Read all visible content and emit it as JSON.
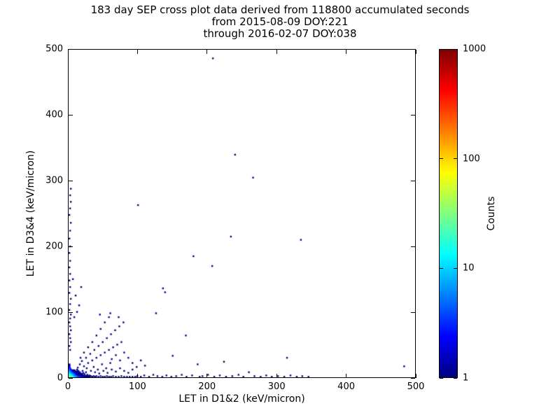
{
  "figure": {
    "title_lines": [
      "183 day SEP cross plot data derived from 118800 accumulated seconds",
      "from 2015-08-09 DOY:221",
      "through 2016-02-07 DOY:038"
    ],
    "background": "#ffffff",
    "text_color": "#000000"
  },
  "chart_data": {
    "type": "scatter",
    "title": "183 day SEP cross plot data derived from 118800 accumulated seconds from 2015-08-09 DOY:221 through 2016-02-07 DOY:038",
    "xlabel": "LET in D1&2 (keV/micron)",
    "ylabel": "LET in D3&4 (keV/micron)",
    "xlim": [
      0,
      500
    ],
    "ylim": [
      0,
      500
    ],
    "x_ticks": [
      0,
      100,
      200,
      300,
      400,
      500
    ],
    "y_ticks": [
      0,
      100,
      200,
      300,
      400,
      500
    ],
    "grid": false,
    "legend": "none",
    "colorbar": {
      "label": "Counts",
      "scale": "log",
      "min": 1,
      "max": 1000,
      "tick_values": [
        1000,
        100,
        10,
        1
      ],
      "tick_labels": [
        "1000",
        "100",
        "10",
        "1"
      ],
      "colormap": "jet",
      "gradient_stops": [
        {
          "pos": 0.0,
          "color": "#7f0000"
        },
        {
          "pos": 0.125,
          "color": "#ff0000"
        },
        {
          "pos": 0.375,
          "color": "#ffff00"
        },
        {
          "pos": 0.625,
          "color": "#00ffff"
        },
        {
          "pos": 0.875,
          "color": "#0000ff"
        },
        {
          "pos": 1.0,
          "color": "#00007f"
        }
      ]
    },
    "points_format": [
      "let_d12",
      "let_d34",
      "count"
    ],
    "points": [
      [
        1,
        1,
        30
      ],
      [
        2,
        1,
        26
      ],
      [
        1,
        2,
        24
      ],
      [
        2,
        2,
        22
      ],
      [
        3,
        1,
        20
      ],
      [
        1,
        3,
        19
      ],
      [
        3,
        2,
        17
      ],
      [
        2,
        3,
        16
      ],
      [
        3,
        3,
        14
      ],
      [
        4,
        1,
        17
      ],
      [
        1,
        4,
        15
      ],
      [
        4,
        2,
        13
      ],
      [
        2,
        4,
        12
      ],
      [
        4,
        3,
        11
      ],
      [
        3,
        4,
        10
      ],
      [
        4,
        4,
        9
      ],
      [
        5,
        1,
        14
      ],
      [
        1,
        5,
        12
      ],
      [
        5,
        2,
        11
      ],
      [
        2,
        5,
        10
      ],
      [
        5,
        3,
        9
      ],
      [
        3,
        5,
        8
      ],
      [
        5,
        4,
        7
      ],
      [
        4,
        5,
        7
      ],
      [
        5,
        5,
        6
      ],
      [
        6,
        1,
        12
      ],
      [
        1,
        6,
        10
      ],
      [
        6,
        2,
        9
      ],
      [
        2,
        6,
        8
      ],
      [
        6,
        3,
        7
      ],
      [
        3,
        6,
        7
      ],
      [
        6,
        4,
        6
      ],
      [
        4,
        6,
        5
      ],
      [
        6,
        5,
        5
      ],
      [
        5,
        6,
        4
      ],
      [
        6,
        6,
        4
      ],
      [
        7,
        1,
        10
      ],
      [
        1,
        7,
        8
      ],
      [
        7,
        2,
        7
      ],
      [
        2,
        7,
        7
      ],
      [
        7,
        3,
        6
      ],
      [
        3,
        7,
        5
      ],
      [
        7,
        4,
        5
      ],
      [
        4,
        7,
        4
      ],
      [
        7,
        5,
        4
      ],
      [
        5,
        7,
        3
      ],
      [
        7,
        6,
        3
      ],
      [
        6,
        7,
        3
      ],
      [
        7,
        7,
        2
      ],
      [
        8,
        1,
        8
      ],
      [
        1,
        8,
        7
      ],
      [
        8,
        2,
        6
      ],
      [
        2,
        8,
        5
      ],
      [
        8,
        3,
        5
      ],
      [
        3,
        8,
        4
      ],
      [
        8,
        4,
        4
      ],
      [
        4,
        8,
        3
      ],
      [
        8,
        5,
        3
      ],
      [
        5,
        8,
        3
      ],
      [
        8,
        6,
        2
      ],
      [
        6,
        8,
        2
      ],
      [
        8,
        8,
        2
      ],
      [
        9,
        1,
        7
      ],
      [
        1,
        9,
        6
      ],
      [
        9,
        2,
        5
      ],
      [
        2,
        9,
        4
      ],
      [
        9,
        3,
        4
      ],
      [
        3,
        9,
        3
      ],
      [
        9,
        4,
        3
      ],
      [
        4,
        9,
        3
      ],
      [
        9,
        5,
        2
      ],
      [
        5,
        9,
        2
      ],
      [
        9,
        7,
        2
      ],
      [
        7,
        9,
        1
      ],
      [
        10,
        1,
        6
      ],
      [
        1,
        10,
        5
      ],
      [
        10,
        2,
        4
      ],
      [
        2,
        10,
        4
      ],
      [
        10,
        3,
        3
      ],
      [
        3,
        10,
        3
      ],
      [
        10,
        4,
        2
      ],
      [
        4,
        10,
        2
      ],
      [
        10,
        5,
        2
      ],
      [
        5,
        10,
        1
      ],
      [
        10,
        7,
        1
      ],
      [
        7,
        10,
        1
      ],
      [
        9,
        9,
        1
      ],
      [
        10,
        9,
        1
      ],
      [
        9,
        10,
        1
      ],
      [
        11,
        1,
        5
      ],
      [
        1,
        11,
        4
      ],
      [
        11,
        2,
        4
      ],
      [
        2,
        11,
        3
      ],
      [
        11,
        3,
        2
      ],
      [
        3,
        11,
        2
      ],
      [
        11,
        4,
        2
      ],
      [
        4,
        11,
        1
      ],
      [
        11,
        6,
        1
      ],
      [
        6,
        11,
        1
      ],
      [
        12,
        1,
        4
      ],
      [
        1,
        12,
        4
      ],
      [
        12,
        2,
        3
      ],
      [
        2,
        12,
        2
      ],
      [
        12,
        3,
        2
      ],
      [
        3,
        12,
        2
      ],
      [
        12,
        5,
        1
      ],
      [
        13,
        1,
        4
      ],
      [
        1,
        13,
        3
      ],
      [
        13,
        2,
        2
      ],
      [
        2,
        13,
        2
      ],
      [
        13,
        3,
        1
      ],
      [
        13,
        6,
        1
      ],
      [
        14,
        1,
        3
      ],
      [
        1,
        14,
        3
      ],
      [
        14,
        2,
        2
      ],
      [
        2,
        14,
        1
      ],
      [
        14,
        4,
        1
      ],
      [
        15,
        1,
        3
      ],
      [
        1,
        15,
        2
      ],
      [
        15,
        2,
        2
      ],
      [
        15,
        3,
        1
      ],
      [
        16,
        1,
        3
      ],
      [
        1,
        16,
        2
      ],
      [
        16,
        2,
        1
      ],
      [
        16,
        5,
        1
      ],
      [
        17,
        1,
        2
      ],
      [
        1,
        17,
        2
      ],
      [
        17,
        2,
        1
      ],
      [
        18,
        1,
        2
      ],
      [
        1,
        18,
        1
      ],
      [
        18,
        3,
        1
      ],
      [
        19,
        1,
        2
      ],
      [
        1,
        19,
        1
      ],
      [
        20,
        1,
        2
      ],
      [
        1,
        20,
        1
      ],
      [
        20,
        2,
        1
      ],
      [
        21,
        1,
        1
      ],
      [
        22,
        1,
        1
      ],
      [
        23,
        1,
        1
      ],
      [
        24,
        1,
        1
      ],
      [
        25,
        1,
        1
      ],
      [
        26,
        1,
        1
      ],
      [
        27,
        1,
        1
      ],
      [
        28,
        1,
        1
      ],
      [
        29,
        1,
        1
      ],
      [
        30,
        1,
        1
      ],
      [
        11,
        8,
        1
      ],
      [
        8,
        11,
        1
      ],
      [
        12,
        9,
        1
      ],
      [
        14,
        7,
        1
      ],
      [
        13,
        9,
        1
      ],
      [
        15,
        6,
        1
      ],
      [
        16,
        8,
        1
      ],
      [
        12,
        12,
        1
      ],
      [
        14,
        10,
        1
      ],
      [
        17,
        5,
        1
      ],
      [
        19,
        4,
        1
      ],
      [
        18,
        6,
        1
      ],
      [
        20,
        5,
        1
      ],
      [
        22,
        3,
        1
      ],
      [
        24,
        2,
        1
      ],
      [
        26,
        3,
        1
      ],
      [
        28,
        2,
        1
      ],
      [
        21,
        7,
        1
      ],
      [
        23,
        5,
        1
      ],
      [
        25,
        8,
        1
      ],
      [
        27,
        4,
        1
      ],
      [
        30,
        3,
        1
      ],
      [
        32,
        2,
        1
      ],
      [
        34,
        1,
        1
      ],
      [
        36,
        2,
        1
      ],
      [
        38,
        1,
        1
      ],
      [
        40,
        2,
        1
      ],
      [
        43,
        1,
        1
      ],
      [
        46,
        2,
        1
      ],
      [
        49,
        1,
        1
      ],
      [
        52,
        1,
        1
      ],
      [
        55,
        2,
        1
      ],
      [
        58,
        1,
        1
      ],
      [
        61,
        1,
        1
      ],
      [
        64,
        2,
        1
      ],
      [
        68,
        1,
        1
      ],
      [
        72,
        1,
        1
      ],
      [
        76,
        2,
        1
      ],
      [
        80,
        1,
        1
      ],
      [
        84,
        1,
        1
      ],
      [
        88,
        1,
        1
      ],
      [
        92,
        1,
        1
      ],
      [
        96,
        1,
        1
      ],
      [
        99,
        2,
        1
      ],
      [
        104,
        1,
        1
      ],
      [
        109,
        3,
        1
      ],
      [
        116,
        1,
        1
      ],
      [
        122,
        4,
        1
      ],
      [
        128,
        2,
        1
      ],
      [
        135,
        1,
        1
      ],
      [
        141,
        3,
        1
      ],
      [
        148,
        1,
        1
      ],
      [
        155,
        2,
        1
      ],
      [
        163,
        4,
        1
      ],
      [
        170,
        1,
        1
      ],
      [
        178,
        3,
        1
      ],
      [
        186,
        20,
        1
      ],
      [
        189,
        1,
        1
      ],
      [
        193,
        2,
        1
      ],
      [
        201,
        4,
        1
      ],
      [
        210,
        1,
        1
      ],
      [
        218,
        3,
        1
      ],
      [
        224,
        24,
        1
      ],
      [
        227,
        1,
        1
      ],
      [
        236,
        2,
        1
      ],
      [
        245,
        4,
        1
      ],
      [
        252,
        1,
        1
      ],
      [
        260,
        8,
        1
      ],
      [
        268,
        2,
        1
      ],
      [
        277,
        1,
        1
      ],
      [
        285,
        3,
        1
      ],
      [
        293,
        1,
        1
      ],
      [
        302,
        2,
        1
      ],
      [
        311,
        1,
        1
      ],
      [
        315,
        30,
        1
      ],
      [
        320,
        3,
        1
      ],
      [
        329,
        1,
        1
      ],
      [
        337,
        2,
        1
      ],
      [
        346,
        1,
        1
      ],
      [
        484,
        17,
        1
      ],
      [
        2,
        42,
        1
      ],
      [
        1,
        48,
        1
      ],
      [
        3,
        54,
        1
      ],
      [
        2,
        60,
        1
      ],
      [
        1,
        66,
        1
      ],
      [
        3,
        72,
        1
      ],
      [
        2,
        78,
        1
      ],
      [
        1,
        84,
        1
      ],
      [
        2,
        90,
        1
      ],
      [
        3,
        96,
        1
      ],
      [
        1,
        103,
        1
      ],
      [
        2,
        112,
        1
      ],
      [
        3,
        120,
        1
      ],
      [
        1,
        129,
        1
      ],
      [
        2,
        138,
        1
      ],
      [
        1,
        148,
        1
      ],
      [
        2,
        158,
        1
      ],
      [
        1,
        168,
        1
      ],
      [
        2,
        178,
        1
      ],
      [
        1,
        190,
        1
      ],
      [
        2,
        200,
        1
      ],
      [
        1,
        212,
        1
      ],
      [
        2,
        224,
        1
      ],
      [
        3,
        236,
        1
      ],
      [
        1,
        248,
        1
      ],
      [
        2,
        258,
        1
      ],
      [
        3,
        268,
        1
      ],
      [
        2,
        278,
        1
      ],
      [
        3,
        288,
        1
      ],
      [
        13,
        15,
        1
      ],
      [
        16,
        20,
        1
      ],
      [
        19,
        25,
        1
      ],
      [
        22,
        17,
        1
      ],
      [
        25,
        30,
        1
      ],
      [
        28,
        22,
        1
      ],
      [
        31,
        36,
        1
      ],
      [
        34,
        26,
        1
      ],
      [
        37,
        42,
        1
      ],
      [
        40,
        30,
        1
      ],
      [
        43,
        48,
        1
      ],
      [
        46,
        34,
        1
      ],
      [
        49,
        54,
        1
      ],
      [
        52,
        38,
        1
      ],
      [
        55,
        60,
        1
      ],
      [
        58,
        42,
        1
      ],
      [
        61,
        66,
        1
      ],
      [
        64,
        46,
        1
      ],
      [
        67,
        72,
        1
      ],
      [
        70,
        50,
        1
      ],
      [
        73,
        78,
        1
      ],
      [
        76,
        54,
        1
      ],
      [
        79,
        84,
        1
      ],
      [
        58,
        92,
        2
      ],
      [
        52,
        84,
        1
      ],
      [
        46,
        74,
        1
      ],
      [
        40,
        64,
        1
      ],
      [
        34,
        54,
        1
      ],
      [
        28,
        46,
        1
      ],
      [
        22,
        38,
        1
      ],
      [
        17,
        30,
        1
      ],
      [
        62,
        28,
        1
      ],
      [
        68,
        34,
        1
      ],
      [
        74,
        26,
        1
      ],
      [
        80,
        38,
        1
      ],
      [
        86,
        30,
        1
      ],
      [
        92,
        22,
        1
      ],
      [
        98,
        16,
        1
      ],
      [
        104,
        26,
        1
      ],
      [
        110,
        18,
        1
      ],
      [
        36,
        16,
        1
      ],
      [
        42,
        12,
        1
      ],
      [
        48,
        20,
        1
      ],
      [
        54,
        14,
        1
      ],
      [
        60,
        22,
        1
      ],
      [
        20,
        10,
        2
      ],
      [
        26,
        14,
        1
      ],
      [
        32,
        10,
        1
      ],
      [
        38,
        8,
        2
      ],
      [
        44,
        6,
        1
      ],
      [
        50,
        10,
        1
      ],
      [
        56,
        7,
        1
      ],
      [
        62,
        12,
        1
      ],
      [
        68,
        9,
        1
      ],
      [
        74,
        14,
        1
      ],
      [
        80,
        10,
        1
      ],
      [
        86,
        7,
        1
      ],
      [
        92,
        12,
        1
      ],
      [
        12,
        100,
        1
      ],
      [
        8,
        92,
        1
      ],
      [
        15,
        110,
        1
      ],
      [
        10,
        125,
        1
      ],
      [
        18,
        138,
        1
      ],
      [
        6,
        150,
        1
      ],
      [
        45,
        96,
        1
      ],
      [
        60,
        98,
        1
      ],
      [
        72,
        92,
        1
      ],
      [
        208,
        487,
        1
      ],
      [
        240,
        340,
        1
      ],
      [
        266,
        305,
        1
      ],
      [
        234,
        215,
        1
      ],
      [
        335,
        210,
        1
      ],
      [
        207,
        170,
        1
      ],
      [
        180,
        185,
        1
      ],
      [
        136,
        136,
        1
      ],
      [
        139,
        130,
        1
      ],
      [
        126,
        98,
        1
      ],
      [
        100,
        263,
        1
      ],
      [
        169,
        64,
        1
      ],
      [
        150,
        33,
        1
      ]
    ]
  }
}
